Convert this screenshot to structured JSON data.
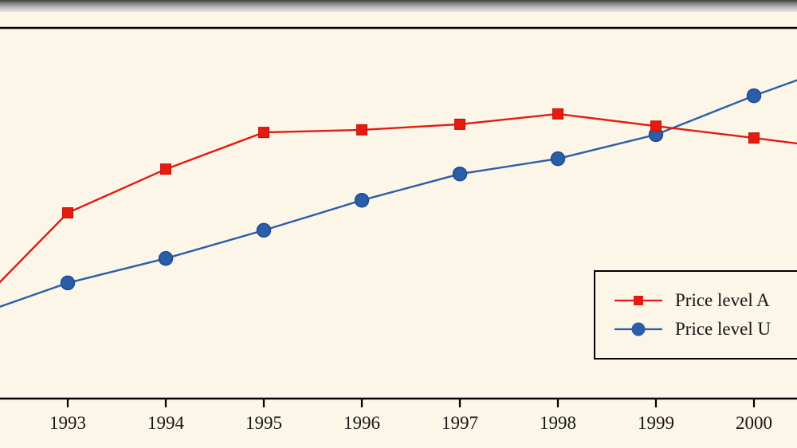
{
  "chart_data": {
    "type": "line",
    "title": "",
    "xlabel": "",
    "ylabel": "",
    "x_tick_labels": [
      "1993",
      "1994",
      "1995",
      "1996",
      "1997",
      "1998",
      "1999",
      "2000"
    ],
    "x_range_visible": [
      1992.3,
      2000.45
    ],
    "ylim": [
      0,
      100
    ],
    "y_axis_note": "y-axis not visible in the cropped image; values are a relative index where 0 = x-axis line and 100 = top frame line",
    "grid": "off",
    "frame": {
      "top_border": true,
      "bottom_axis": true
    },
    "series": [
      {
        "name": "Price level U",
        "color": "#2b5da8",
        "stroke": "#1c4a8f",
        "marker": "circle",
        "points": [
          {
            "x": 1992.3,
            "y": 24.7,
            "edge": true
          },
          {
            "x": 1993,
            "y": 31.2
          },
          {
            "x": 1994,
            "y": 37.8
          },
          {
            "x": 1995,
            "y": 45.4
          },
          {
            "x": 1996,
            "y": 53.5
          },
          {
            "x": 1997,
            "y": 60.6
          },
          {
            "x": 1998,
            "y": 64.7
          },
          {
            "x": 1999,
            "y": 71.2
          },
          {
            "x": 2000,
            "y": 81.7
          },
          {
            "x": 2000.45,
            "y": 86.0,
            "edge": true
          }
        ]
      },
      {
        "name": "Price level A",
        "color": "#e51a10",
        "stroke": "#c01008",
        "marker": "square",
        "points": [
          {
            "x": 1992.3,
            "y": 31.2,
            "edge": true
          },
          {
            "x": 1993,
            "y": 50.1
          },
          {
            "x": 1994,
            "y": 61.9
          },
          {
            "x": 1995,
            "y": 71.8
          },
          {
            "x": 1996,
            "y": 72.5
          },
          {
            "x": 1997,
            "y": 74.0
          },
          {
            "x": 1998,
            "y": 76.8
          },
          {
            "x": 1999,
            "y": 73.5
          },
          {
            "x": 2000,
            "y": 70.3
          },
          {
            "x": 2000.45,
            "y": 68.8,
            "edge": true
          }
        ]
      }
    ],
    "legend": {
      "position": "lower-right",
      "clipped_at_right_edge": true,
      "entries": [
        {
          "label": "Price level A",
          "marker": "square",
          "color": "#e51a10"
        },
        {
          "label": "Price level U",
          "marker": "circle",
          "color": "#2b5da8"
        }
      ]
    }
  }
}
